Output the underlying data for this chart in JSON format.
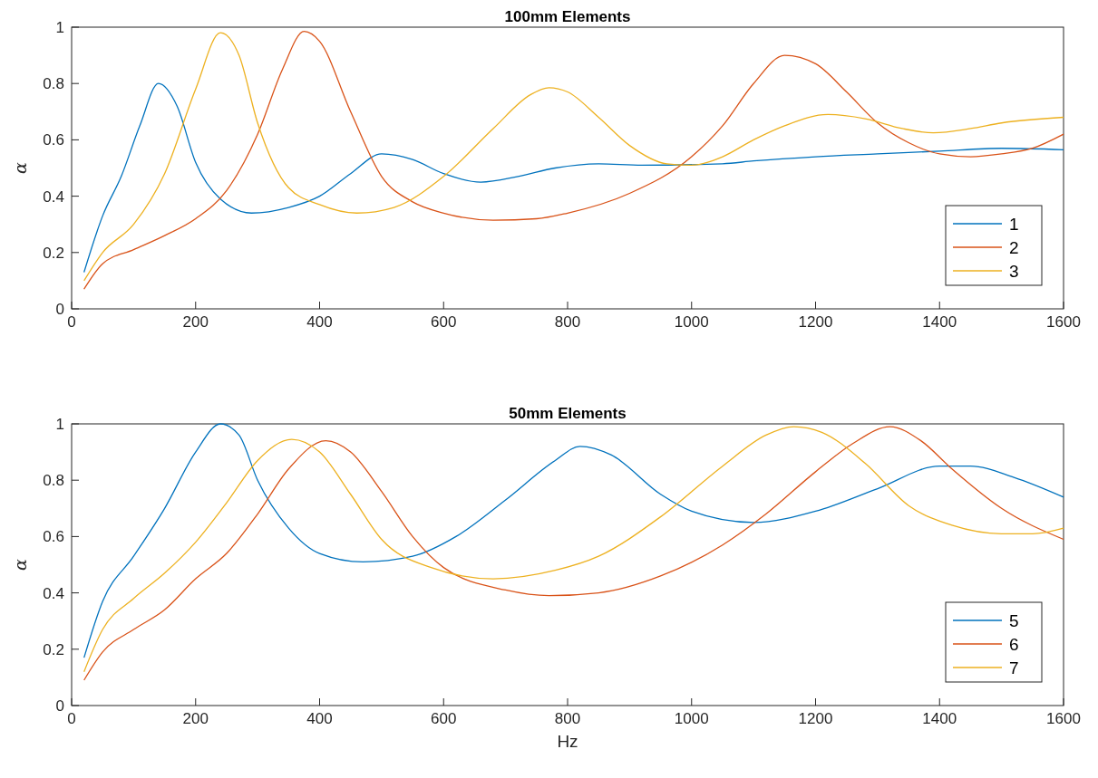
{
  "chart_data": [
    {
      "type": "line",
      "title": "100mm Elements",
      "ylabel": "α",
      "xlim": [
        0,
        1600
      ],
      "xticks": [
        0,
        200,
        400,
        600,
        800,
        1000,
        1200,
        1400,
        1600
      ],
      "ylim": [
        0,
        1
      ],
      "yticks": [
        0,
        0.2,
        0.4,
        0.6,
        0.8,
        1
      ],
      "legend": "bottom right",
      "grid": false,
      "marker": "none",
      "line_style": "solid",
      "series": [
        {
          "name": "1",
          "color": "#0072bd",
          "x": [
            20,
            50,
            80,
            110,
            140,
            170,
            200,
            240,
            290,
            350,
            400,
            450,
            500,
            550,
            600,
            660,
            720,
            780,
            850,
            920,
            1050,
            1100,
            1200,
            1300,
            1400,
            1500,
            1600
          ],
          "values": [
            0.13,
            0.33,
            0.47,
            0.65,
            0.8,
            0.72,
            0.52,
            0.39,
            0.34,
            0.36,
            0.4,
            0.48,
            0.55,
            0.53,
            0.48,
            0.45,
            0.47,
            0.5,
            0.515,
            0.51,
            0.515,
            0.525,
            0.54,
            0.55,
            0.56,
            0.57,
            0.565
          ]
        },
        {
          "name": "2",
          "color": "#d95319",
          "x": [
            20,
            50,
            100,
            150,
            200,
            250,
            300,
            340,
            375,
            400,
            450,
            500,
            550,
            600,
            680,
            750,
            800,
            900,
            1000,
            1050,
            1100,
            1150,
            1200,
            1250,
            1300,
            1350,
            1400,
            1450,
            1500,
            1550,
            1600
          ],
          "values": [
            0.07,
            0.16,
            0.21,
            0.26,
            0.32,
            0.42,
            0.62,
            0.85,
            0.985,
            0.95,
            0.7,
            0.47,
            0.38,
            0.34,
            0.315,
            0.32,
            0.34,
            0.41,
            0.54,
            0.65,
            0.8,
            0.9,
            0.87,
            0.77,
            0.66,
            0.59,
            0.55,
            0.54,
            0.55,
            0.57,
            0.62
          ]
        },
        {
          "name": "3",
          "color": "#edb120",
          "x": [
            20,
            50,
            100,
            150,
            200,
            240,
            270,
            300,
            350,
            400,
            460,
            520,
            600,
            680,
            740,
            770,
            800,
            850,
            900,
            960,
            1000,
            1050,
            1100,
            1150,
            1220,
            1280,
            1340,
            1390,
            1450,
            1500,
            1600
          ],
          "values": [
            0.1,
            0.2,
            0.3,
            0.48,
            0.78,
            0.98,
            0.9,
            0.66,
            0.43,
            0.37,
            0.34,
            0.36,
            0.47,
            0.64,
            0.76,
            0.785,
            0.77,
            0.68,
            0.58,
            0.515,
            0.51,
            0.54,
            0.6,
            0.65,
            0.69,
            0.675,
            0.64,
            0.625,
            0.64,
            0.66,
            0.68
          ]
        }
      ]
    },
    {
      "type": "line",
      "title": "50mm Elements",
      "xlabel": "Hz",
      "ylabel": "α",
      "xlim": [
        0,
        1600
      ],
      "xticks": [
        0,
        200,
        400,
        600,
        800,
        1000,
        1200,
        1400,
        1600
      ],
      "ylim": [
        0,
        1
      ],
      "yticks": [
        0,
        0.2,
        0.4,
        0.6,
        0.8,
        1
      ],
      "legend": "bottom right",
      "grid": false,
      "marker": "none",
      "line_style": "solid",
      "series": [
        {
          "name": "5",
          "color": "#0072bd",
          "x": [
            20,
            50,
            100,
            150,
            200,
            240,
            270,
            300,
            350,
            400,
            470,
            550,
            620,
            700,
            780,
            820,
            870,
            950,
            1000,
            1100,
            1200,
            1300,
            1400,
            1450,
            1520,
            1600
          ],
          "values": [
            0.17,
            0.37,
            0.53,
            0.7,
            0.9,
            1.0,
            0.96,
            0.8,
            0.63,
            0.54,
            0.51,
            0.53,
            0.6,
            0.73,
            0.87,
            0.92,
            0.89,
            0.75,
            0.69,
            0.65,
            0.69,
            0.77,
            0.85,
            0.85,
            0.81,
            0.74
          ]
        },
        {
          "name": "6",
          "color": "#d95319",
          "x": [
            20,
            50,
            100,
            150,
            200,
            250,
            300,
            350,
            410,
            450,
            500,
            550,
            600,
            700,
            770,
            850,
            950,
            1050,
            1120,
            1200,
            1260,
            1320,
            1370,
            1420,
            1500,
            1600
          ],
          "values": [
            0.09,
            0.19,
            0.27,
            0.34,
            0.45,
            0.54,
            0.68,
            0.84,
            0.94,
            0.9,
            0.76,
            0.6,
            0.49,
            0.41,
            0.39,
            0.4,
            0.46,
            0.57,
            0.68,
            0.83,
            0.93,
            0.99,
            0.94,
            0.84,
            0.7,
            0.59
          ]
        },
        {
          "name": "7",
          "color": "#edb120",
          "x": [
            20,
            50,
            100,
            150,
            200,
            250,
            300,
            355,
            400,
            450,
            500,
            580,
            680,
            780,
            850,
            950,
            1050,
            1120,
            1165,
            1210,
            1280,
            1350,
            1420,
            1500,
            1550,
            1600
          ],
          "values": [
            0.12,
            0.27,
            0.38,
            0.47,
            0.58,
            0.72,
            0.87,
            0.945,
            0.9,
            0.75,
            0.59,
            0.49,
            0.45,
            0.48,
            0.53,
            0.67,
            0.85,
            0.96,
            0.99,
            0.97,
            0.86,
            0.71,
            0.64,
            0.61,
            0.61,
            0.63
          ]
        }
      ]
    }
  ]
}
